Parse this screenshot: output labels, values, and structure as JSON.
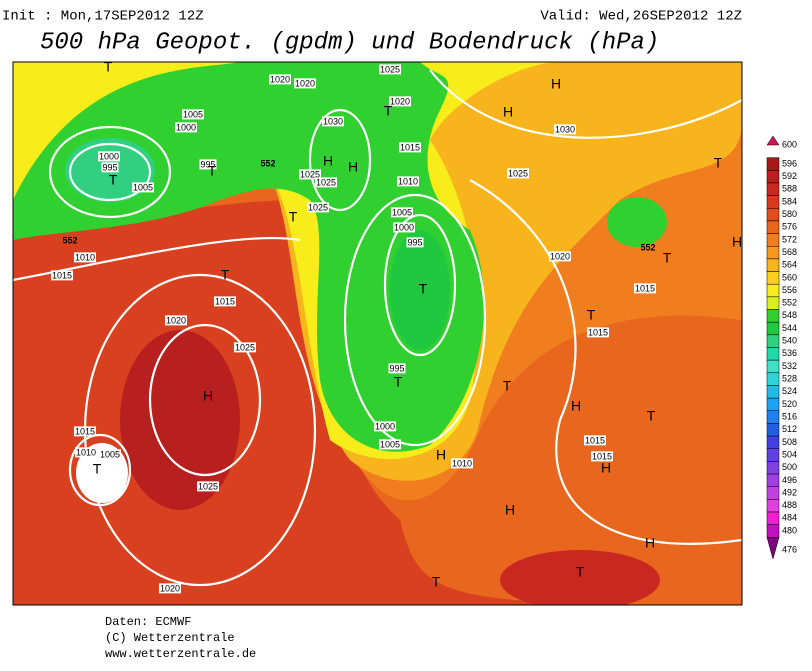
{
  "header": {
    "init": "Init : Mon,17SEP2012 12Z",
    "valid": "Valid: Wed,26SEP2012 12Z",
    "title": "500 hPa Geopot. (gpdm) und Bodendruck (hPa)"
  },
  "colorbar": {
    "levels": [
      600,
      596,
      592,
      588,
      584,
      580,
      576,
      572,
      568,
      564,
      560,
      556,
      552,
      548,
      544,
      540,
      536,
      532,
      528,
      524,
      520,
      516,
      512,
      508,
      504,
      500,
      496,
      492,
      488,
      484,
      480,
      476
    ],
    "colors": [
      "#d0105a",
      "#a81818",
      "#b82020",
      "#c82820",
      "#d83820",
      "#e04c1e",
      "#e8661e",
      "#f07e1e",
      "#f5981e",
      "#f8b41c",
      "#fcd01a",
      "#f8ec1a",
      "#d8f020",
      "#30d030",
      "#20c840",
      "#30d080",
      "#20d8a8",
      "#40e0c8",
      "#30d4d8",
      "#20bce8",
      "#20a0f0",
      "#2080f0",
      "#2060e0",
      "#4040e0",
      "#6040e0",
      "#8040e0",
      "#a040e0",
      "#c040e0",
      "#e040e0",
      "#f020d0",
      "#c010c0",
      "#800080"
    ]
  },
  "map": {
    "pressure_labels": [
      "1025",
      "1020",
      "1020",
      "1020",
      "1005",
      "1000",
      "1030",
      "1000",
      "995",
      "995",
      "1015",
      "1005",
      "1025",
      "1025",
      "1010",
      "1025",
      "1005",
      "1000",
      "995",
      "1010",
      "1030",
      "1025",
      "1020",
      "1015",
      "1015",
      "1015",
      "1020",
      "1015",
      "1025",
      "995",
      "1000",
      "1005",
      "1015",
      "1010",
      "1005",
      "1010",
      "1015",
      "1015",
      "1025",
      "1020"
    ],
    "height_labels": [
      "552",
      "552",
      "552"
    ],
    "centers": [
      "T",
      "T",
      "T",
      "H",
      "H",
      "T",
      "T",
      "T",
      "T",
      "T",
      "H",
      "T",
      "H",
      "H",
      "T",
      "T",
      "H",
      "T",
      "T",
      "H",
      "T",
      "H",
      "H",
      "H",
      "H",
      "T",
      "T"
    ]
  },
  "footer": [
    "Daten: ECMWF",
    "(C) Wetterzentrale",
    "www.wetterzentrale.de"
  ]
}
